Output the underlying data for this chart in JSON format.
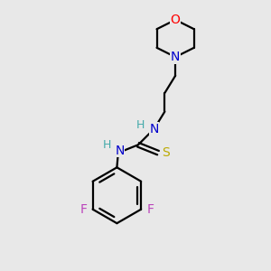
{
  "background_color": "#e8e8e8",
  "atom_colors": {
    "C": "#000000",
    "N": "#0000cc",
    "O": "#ff0000",
    "S": "#bbaa00",
    "F": "#bb44bb",
    "H": "#44aaaa"
  },
  "figsize": [
    3.0,
    3.0
  ],
  "dpi": 100
}
